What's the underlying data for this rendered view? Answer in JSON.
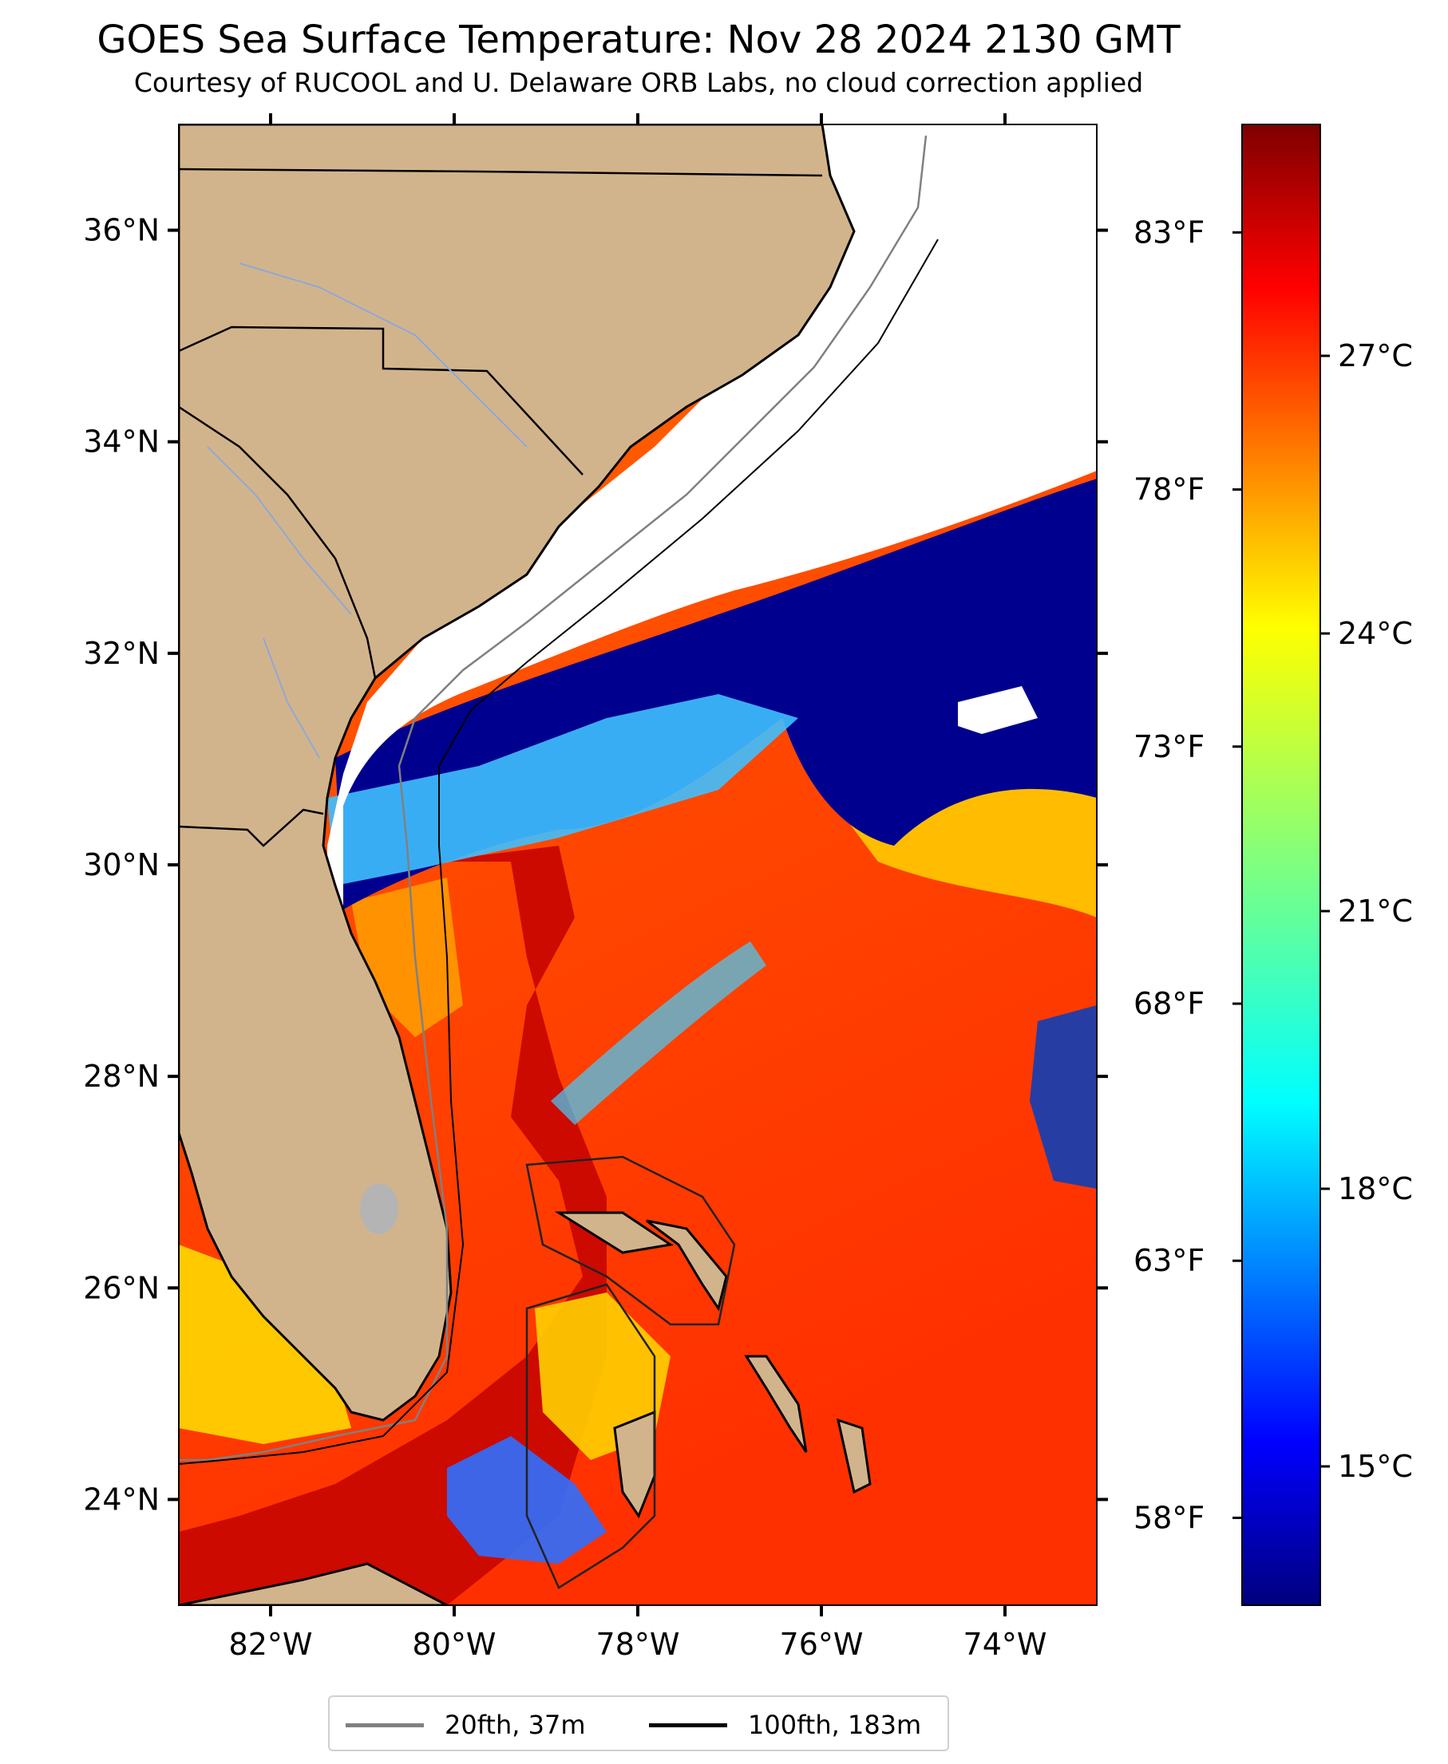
{
  "title": "GOES Sea Surface Temperature: Nov 28 2024 2130 GMT",
  "subtitle": "Courtesy of RUCOOL and U. Delaware ORB Labs, no cloud correction applied",
  "map": {
    "lon_range": [
      -83,
      -73
    ],
    "lat_range": [
      23,
      37
    ],
    "lon_ticks": [
      {
        "value": -82,
        "label": "82°W"
      },
      {
        "value": -80,
        "label": "80°W"
      },
      {
        "value": -78,
        "label": "78°W"
      },
      {
        "value": -76,
        "label": "76°W"
      },
      {
        "value": -74,
        "label": "74°W"
      }
    ],
    "lat_ticks": [
      {
        "value": 36,
        "label": "36°N"
      },
      {
        "value": 34,
        "label": "34°N"
      },
      {
        "value": 32,
        "label": "32°N"
      },
      {
        "value": 30,
        "label": "30°N"
      },
      {
        "value": 28,
        "label": "28°N"
      },
      {
        "value": 26,
        "label": "26°N"
      },
      {
        "value": 24,
        "label": "24°N"
      }
    ],
    "colors": {
      "land": "#d2b48c",
      "cloud_mask": "#ffffff",
      "isobath_20fth": "#808080",
      "isobath_100fth": "#000000",
      "rivers": "#8fa8d8",
      "lakes": "#b4b4b4"
    }
  },
  "colorbar": {
    "colormap": "jet",
    "range_c": [
      13.5,
      29.5
    ],
    "celsius_ticks": [
      {
        "value": 27,
        "label": "27°C"
      },
      {
        "value": 24,
        "label": "24°C"
      },
      {
        "value": 21,
        "label": "21°C"
      },
      {
        "value": 18,
        "label": "18°C"
      },
      {
        "value": 15,
        "label": "15°C"
      }
    ],
    "fahrenheit_ticks": [
      {
        "value": 83,
        "label": "83°F"
      },
      {
        "value": 78,
        "label": "78°F"
      },
      {
        "value": 73,
        "label": "73°F"
      },
      {
        "value": 68,
        "label": "68°F"
      },
      {
        "value": 63,
        "label": "63°F"
      },
      {
        "value": 58,
        "label": "58°F"
      }
    ]
  },
  "legend": {
    "items": [
      {
        "label": "20fth, 37m",
        "color": "#808080"
      },
      {
        "label": "100fth, 183m",
        "color": "#000000"
      }
    ]
  }
}
